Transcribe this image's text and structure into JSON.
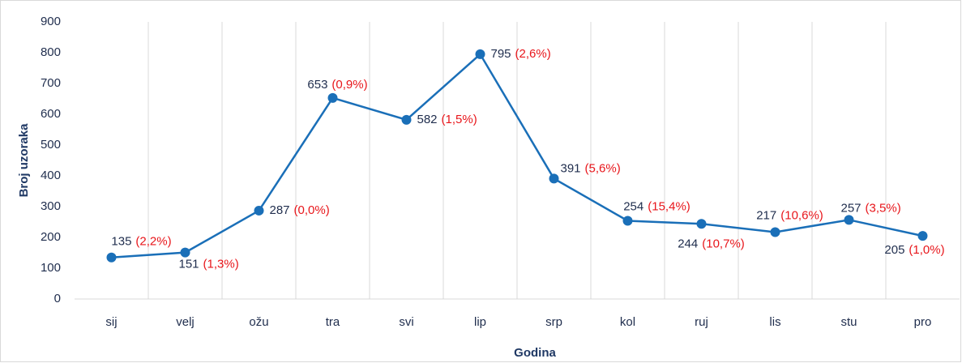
{
  "chart_data": {
    "type": "line",
    "x_label": "Godina",
    "y_label": "Broj uzoraka",
    "categories": [
      "sij",
      "velj",
      "ožu",
      "tra",
      "svi",
      "lip",
      "srp",
      "kol",
      "ruj",
      "lis",
      "stu",
      "pro"
    ],
    "values": [
      135,
      151,
      287,
      653,
      582,
      795,
      391,
      254,
      244,
      217,
      257,
      205
    ],
    "percent_labels": [
      "(2,2%)",
      "(1,3%)",
      "(0,0%)",
      "(0,9%)",
      "(1,5%)",
      "(2,6%)",
      "(5,6%)",
      "(15,4%)",
      "(10,7%)",
      "(10,6%)",
      "(3,5%)",
      "(1,0%)"
    ],
    "color": "#1a6fb8",
    "ylim": [
      0,
      900
    ],
    "yticks": [
      0,
      100,
      200,
      300,
      400,
      500,
      600,
      700,
      800,
      900
    ]
  }
}
